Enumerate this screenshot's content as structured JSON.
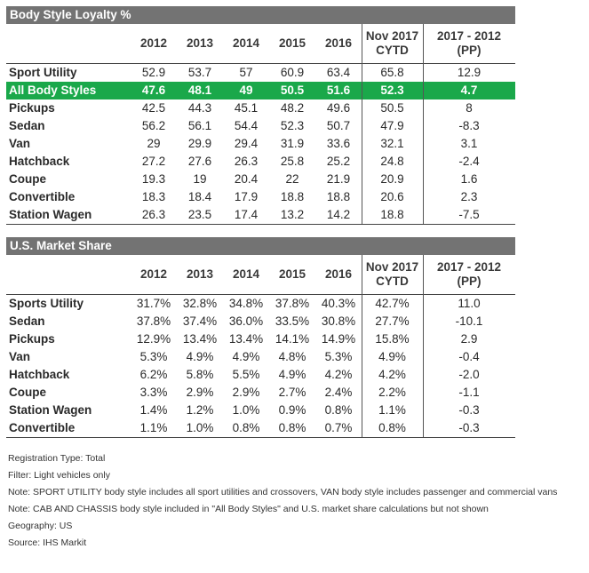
{
  "tables": [
    {
      "title": "Body Style Loyalty %",
      "headers": [
        "",
        "2012",
        "2013",
        "2014",
        "2015",
        "2016",
        "Nov 2017\nCYTD",
        "2017 - 2012\n(PP)"
      ],
      "rows": [
        {
          "label": "Sport Utility",
          "values": [
            "52.9",
            "53.7",
            "57",
            "60.9",
            "63.4",
            "65.8",
            "12.9"
          ],
          "highlight": false
        },
        {
          "label": "All Body Styles",
          "values": [
            "47.6",
            "48.1",
            "49",
            "50.5",
            "51.6",
            "52.3",
            "4.7"
          ],
          "highlight": true
        },
        {
          "label": "Pickups",
          "values": [
            "42.5",
            "44.3",
            "45.1",
            "48.2",
            "49.6",
            "50.5",
            "8"
          ],
          "highlight": false
        },
        {
          "label": "Sedan",
          "values": [
            "56.2",
            "56.1",
            "54.4",
            "52.3",
            "50.7",
            "47.9",
            "-8.3"
          ],
          "highlight": false
        },
        {
          "label": "Van",
          "values": [
            "29",
            "29.9",
            "29.4",
            "31.9",
            "33.6",
            "32.1",
            "3.1"
          ],
          "highlight": false
        },
        {
          "label": "Hatchback",
          "values": [
            "27.2",
            "27.6",
            "26.3",
            "25.8",
            "25.2",
            "24.8",
            "-2.4"
          ],
          "highlight": false
        },
        {
          "label": "Coupe",
          "values": [
            "19.3",
            "19",
            "20.4",
            "22",
            "21.9",
            "20.9",
            "1.6"
          ],
          "highlight": false
        },
        {
          "label": "Convertible",
          "values": [
            "18.3",
            "18.4",
            "17.9",
            "18.8",
            "18.8",
            "20.6",
            "2.3"
          ],
          "highlight": false
        },
        {
          "label": "Station Wagen",
          "values": [
            "26.3",
            "23.5",
            "17.4",
            "13.2",
            "14.2",
            "18.8",
            "-7.5"
          ],
          "highlight": false
        }
      ]
    },
    {
      "title": "U.S. Market Share",
      "headers": [
        "",
        "2012",
        "2013",
        "2014",
        "2015",
        "2016",
        "Nov 2017\nCYTD",
        "2017 - 2012\n(PP)"
      ],
      "rows": [
        {
          "label": "Sports Utility",
          "values": [
            "31.7%",
            "32.8%",
            "34.8%",
            "37.8%",
            "40.3%",
            "42.7%",
            "11.0"
          ],
          "highlight": false
        },
        {
          "label": "Sedan",
          "values": [
            "37.8%",
            "37.4%",
            "36.0%",
            "33.5%",
            "30.8%",
            "27.7%",
            "-10.1"
          ],
          "highlight": false
        },
        {
          "label": "Pickups",
          "values": [
            "12.9%",
            "13.4%",
            "13.4%",
            "14.1%",
            "14.9%",
            "15.8%",
            "2.9"
          ],
          "highlight": false
        },
        {
          "label": "Van",
          "values": [
            "5.3%",
            "4.9%",
            "4.9%",
            "4.8%",
            "5.3%",
            "4.9%",
            "-0.4"
          ],
          "highlight": false
        },
        {
          "label": "Hatchback",
          "values": [
            "6.2%",
            "5.8%",
            "5.5%",
            "4.9%",
            "4.2%",
            "4.2%",
            "-2.0"
          ],
          "highlight": false
        },
        {
          "label": "Coupe",
          "values": [
            "3.3%",
            "2.9%",
            "2.9%",
            "2.7%",
            "2.4%",
            "2.2%",
            "-1.1"
          ],
          "highlight": false
        },
        {
          "label": "Station Wagen",
          "values": [
            "1.4%",
            "1.2%",
            "1.0%",
            "0.9%",
            "0.8%",
            "1.1%",
            "-0.3"
          ],
          "highlight": false
        },
        {
          "label": "Convertible",
          "values": [
            "1.1%",
            "1.0%",
            "0.8%",
            "0.8%",
            "0.7%",
            "0.8%",
            "-0.3"
          ],
          "highlight": false
        }
      ]
    }
  ],
  "notes": [
    "Registration Type: Total",
    "Filter: Light vehicles only",
    "Note: SPORT UTILITY body style includes all sport utilities and crossovers, VAN body style includes passenger and commercial vans",
    "Note: CAB AND CHASSIS body style included in \"All Body Styles\" and U.S. market share calculations but not shown",
    "Geography: US",
    "Source: IHS Markit"
  ],
  "colors": {
    "title_bar": "#737373",
    "highlight_row": "#1aa84a"
  }
}
